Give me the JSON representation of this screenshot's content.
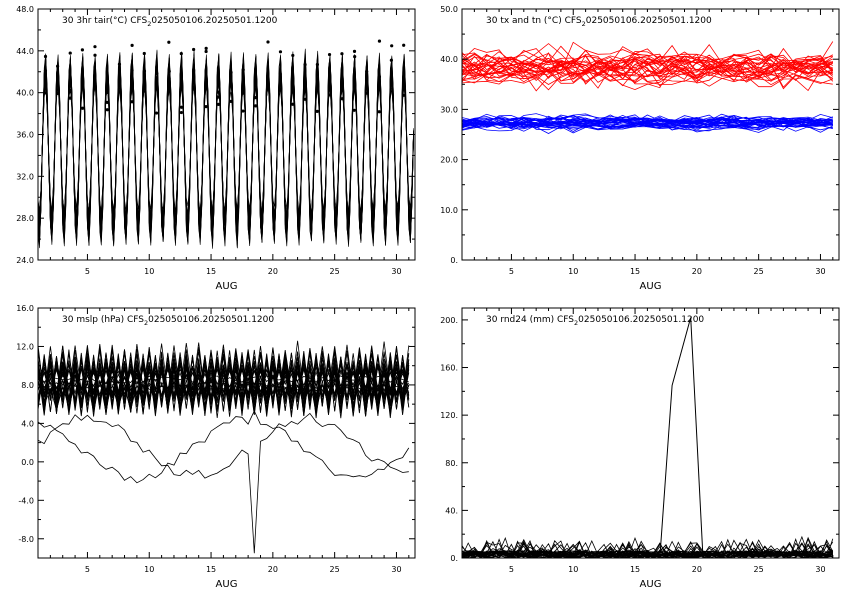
{
  "chart_data": [
    {
      "type": "line",
      "id": "tair",
      "title_prefix": "30 3hr tair(",
      "title_unit": "°C)",
      "title_source": "CFS",
      "title_sub": "2",
      "title_suffix": "025050106.20250501.1200",
      "xlabel": "AUG",
      "xlim": [
        1,
        31.5
      ],
      "ylim": [
        24,
        48
      ],
      "x_ticks": [
        5,
        10,
        15,
        20,
        25,
        30
      ],
      "x_tick_labels": [
        "5",
        "10",
        "15",
        "20",
        "25",
        "30"
      ],
      "y_ticks": [
        24,
        28,
        32,
        36,
        40,
        44,
        48
      ],
      "y_tick_labels": [
        "24.0",
        "28.0",
        "32.0",
        "36.0",
        "40.0",
        "44.0",
        "48.0"
      ],
      "grid": false,
      "series_count": 30,
      "series_color": "#000000",
      "sampling": "3-hourly",
      "daily_max_range": [
        38,
        46
      ],
      "daily_min_range": [
        25,
        29
      ]
    },
    {
      "type": "line",
      "id": "txtn",
      "title_prefix": "30 tx and tn (",
      "title_unit": "°C)",
      "title_source": "CFS",
      "title_sub": "2",
      "title_suffix": "025050106.20250501.1200",
      "xlabel": "AUG",
      "xlim": [
        1,
        31.5
      ],
      "ylim": [
        0,
        50
      ],
      "x_ticks": [
        5,
        10,
        15,
        20,
        25,
        30
      ],
      "x_tick_labels": [
        "5",
        "10",
        "15",
        "20",
        "25",
        "30"
      ],
      "y_ticks": [
        0,
        10,
        20,
        30,
        40,
        50
      ],
      "y_tick_labels": [
        "0.",
        "10.0",
        "20.0",
        "30.0",
        "40.0",
        "50.0"
      ],
      "grid": false,
      "series_count": 30,
      "tx_color": "#ff0000",
      "tn_color": "#0000ff",
      "tx_range": [
        33,
        46
      ],
      "tn_range": [
        24,
        31
      ]
    },
    {
      "type": "line",
      "id": "mslp",
      "title_prefix": "30 mslp (hPa) ",
      "title_unit": "",
      "title_source": "CFS",
      "title_sub": "2",
      "title_suffix": "025050106.20250501.1200",
      "xlabel": "AUG",
      "xlim": [
        1,
        31.5
      ],
      "ylim": [
        -10,
        16
      ],
      "x_ticks": [
        5,
        10,
        15,
        20,
        25,
        30
      ],
      "x_tick_labels": [
        "5",
        "10",
        "15",
        "20",
        "25",
        "30"
      ],
      "y_ticks": [
        -8,
        -4,
        0,
        4,
        8,
        12,
        16
      ],
      "y_tick_labels": [
        "-8.0",
        "-4.0",
        "0.0",
        "4.0",
        "8.0",
        "12.0",
        "16.0"
      ],
      "grid": false,
      "series_count": 30,
      "series_color": "#000000",
      "main_range": [
        2,
        14
      ],
      "outlier_min": -9.5
    },
    {
      "type": "line",
      "id": "rnd24",
      "title_prefix": "30 rnd24 (mm) ",
      "title_unit": "",
      "title_source": "CFS",
      "title_sub": "2",
      "title_suffix": "025050106.20250501.1200",
      "xlabel": "AUG",
      "xlim": [
        1,
        31.5
      ],
      "ylim": [
        0,
        210
      ],
      "x_ticks": [
        5,
        10,
        15,
        20,
        25,
        30
      ],
      "x_tick_labels": [
        "5",
        "10",
        "15",
        "20",
        "25",
        "30"
      ],
      "y_ticks": [
        0,
        40,
        80,
        120,
        160,
        200
      ],
      "y_tick_labels": [
        "0.",
        "40.",
        "80.",
        "120.",
        "160.",
        "200."
      ],
      "grid": false,
      "series_count": 30,
      "series_color": "#000000",
      "peak": {
        "x": 19.5,
        "y": 202
      },
      "peak_series_x": [
        17,
        18,
        19.5,
        20.5
      ],
      "peak_series_y": [
        0,
        145,
        202,
        0
      ],
      "typical_max": 12
    }
  ]
}
